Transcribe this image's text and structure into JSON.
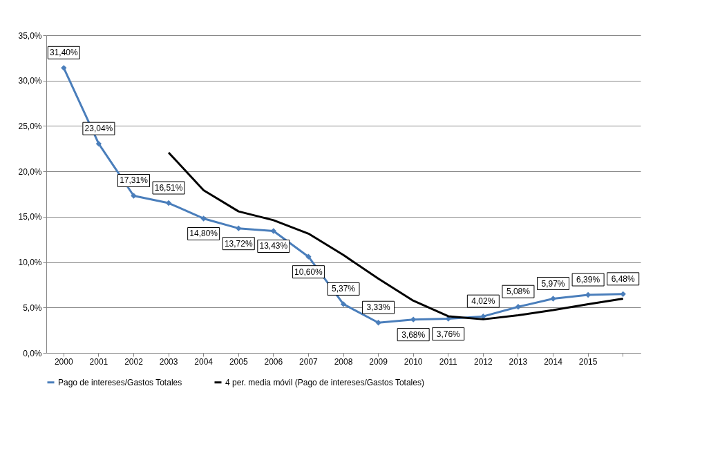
{
  "chart_data": {
    "type": "line",
    "categories": [
      "2000",
      "2001",
      "2002",
      "2003",
      "2004",
      "2005",
      "2006",
      "2007",
      "2008",
      "2009",
      "2010",
      "2011",
      "2012",
      "2013",
      "2014",
      "2015",
      null
    ],
    "ylim": [
      0,
      35
    ],
    "yticks": [
      {
        "value": 0,
        "label": "0,0%"
      },
      {
        "value": 5,
        "label": "5,0%"
      },
      {
        "value": 10,
        "label": "10,0%"
      },
      {
        "value": 15,
        "label": "15,0%"
      },
      {
        "value": 20,
        "label": "20,0%"
      },
      {
        "value": 25,
        "label": "25,0%"
      },
      {
        "value": 30,
        "label": "30,0%"
      },
      {
        "value": 35,
        "label": "35,0%"
      }
    ],
    "grid": "y",
    "legend": "bottom",
    "marker": "diamond",
    "series": [
      {
        "name": "Pago de intereses/Gastos Totales",
        "color": "#4a7ebb",
        "values": [
          31.4,
          23.04,
          17.31,
          16.51,
          14.8,
          13.72,
          13.43,
          10.6,
          5.37,
          3.33,
          3.68,
          3.76,
          4.02,
          5.08,
          5.97,
          6.39,
          6.48
        ],
        "value_labels": [
          "31,40%",
          "23,04%",
          "17,31%",
          "16,51%",
          "14,80%",
          "13,72%",
          "13,43%",
          "10,60%",
          "5,37%",
          "3,33%",
          "3,68%",
          "3,76%",
          "4,02%",
          "5,08%",
          "5,97%",
          "6,39%",
          "6,48%"
        ]
      },
      {
        "name": "4 per. media móvil (Pago de intereses/Gastos Totales)",
        "color": "#000000",
        "marker": "none",
        "values": [
          null,
          null,
          null,
          22.07,
          17.92,
          15.59,
          14.62,
          13.14,
          10.78,
          8.18,
          5.75,
          4.04,
          3.7,
          4.14,
          4.71,
          5.37,
          5.98
        ]
      }
    ]
  }
}
